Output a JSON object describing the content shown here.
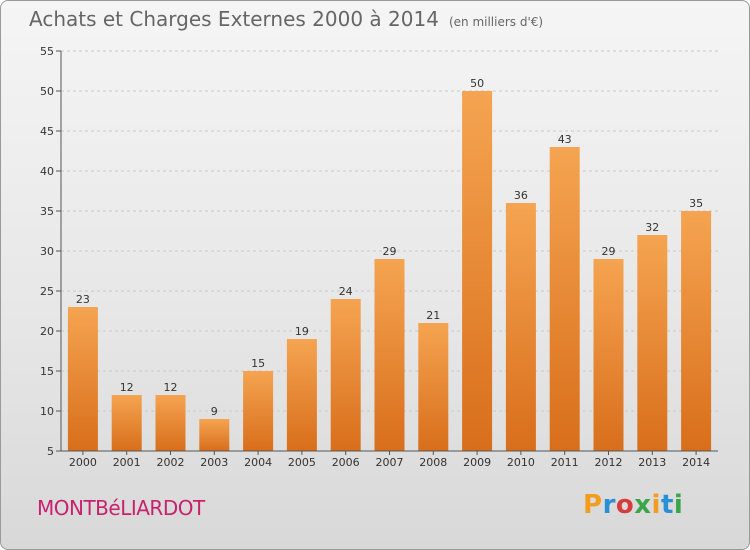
{
  "title": "Achats et Charges Externes 2000 à 2014",
  "unit_note": "(en milliers d'€)",
  "location": "MONTBéLIARDOT",
  "logo": {
    "letters": [
      "P",
      "r",
      "o",
      "x",
      "i",
      "t",
      "i"
    ],
    "colors": [
      "#f39c1e",
      "#2a8fd6",
      "#d63c3c",
      "#3aa64a",
      "#f39c1e",
      "#2a8fd6",
      "#3aa64a"
    ]
  },
  "colors": {
    "bar_top": "#f5a451",
    "bar_bottom": "#d86e1b",
    "grid": "#c9c9c9",
    "axis": "#555555"
  },
  "chart_data": {
    "type": "bar",
    "title": "Achats et Charges Externes 2000 à 2014",
    "categories": [
      "2000",
      "2001",
      "2002",
      "2003",
      "2004",
      "2005",
      "2006",
      "2007",
      "2008",
      "2009",
      "2010",
      "2011",
      "2012",
      "2013",
      "2014"
    ],
    "values": [
      23,
      12,
      12,
      9,
      15,
      19,
      24,
      29,
      21,
      50,
      36,
      43,
      29,
      32,
      35
    ],
    "ylim": [
      5,
      55
    ],
    "yticks": [
      5,
      10,
      15,
      20,
      25,
      30,
      35,
      40,
      45,
      50,
      55
    ],
    "grid": true,
    "data_labels": true
  }
}
